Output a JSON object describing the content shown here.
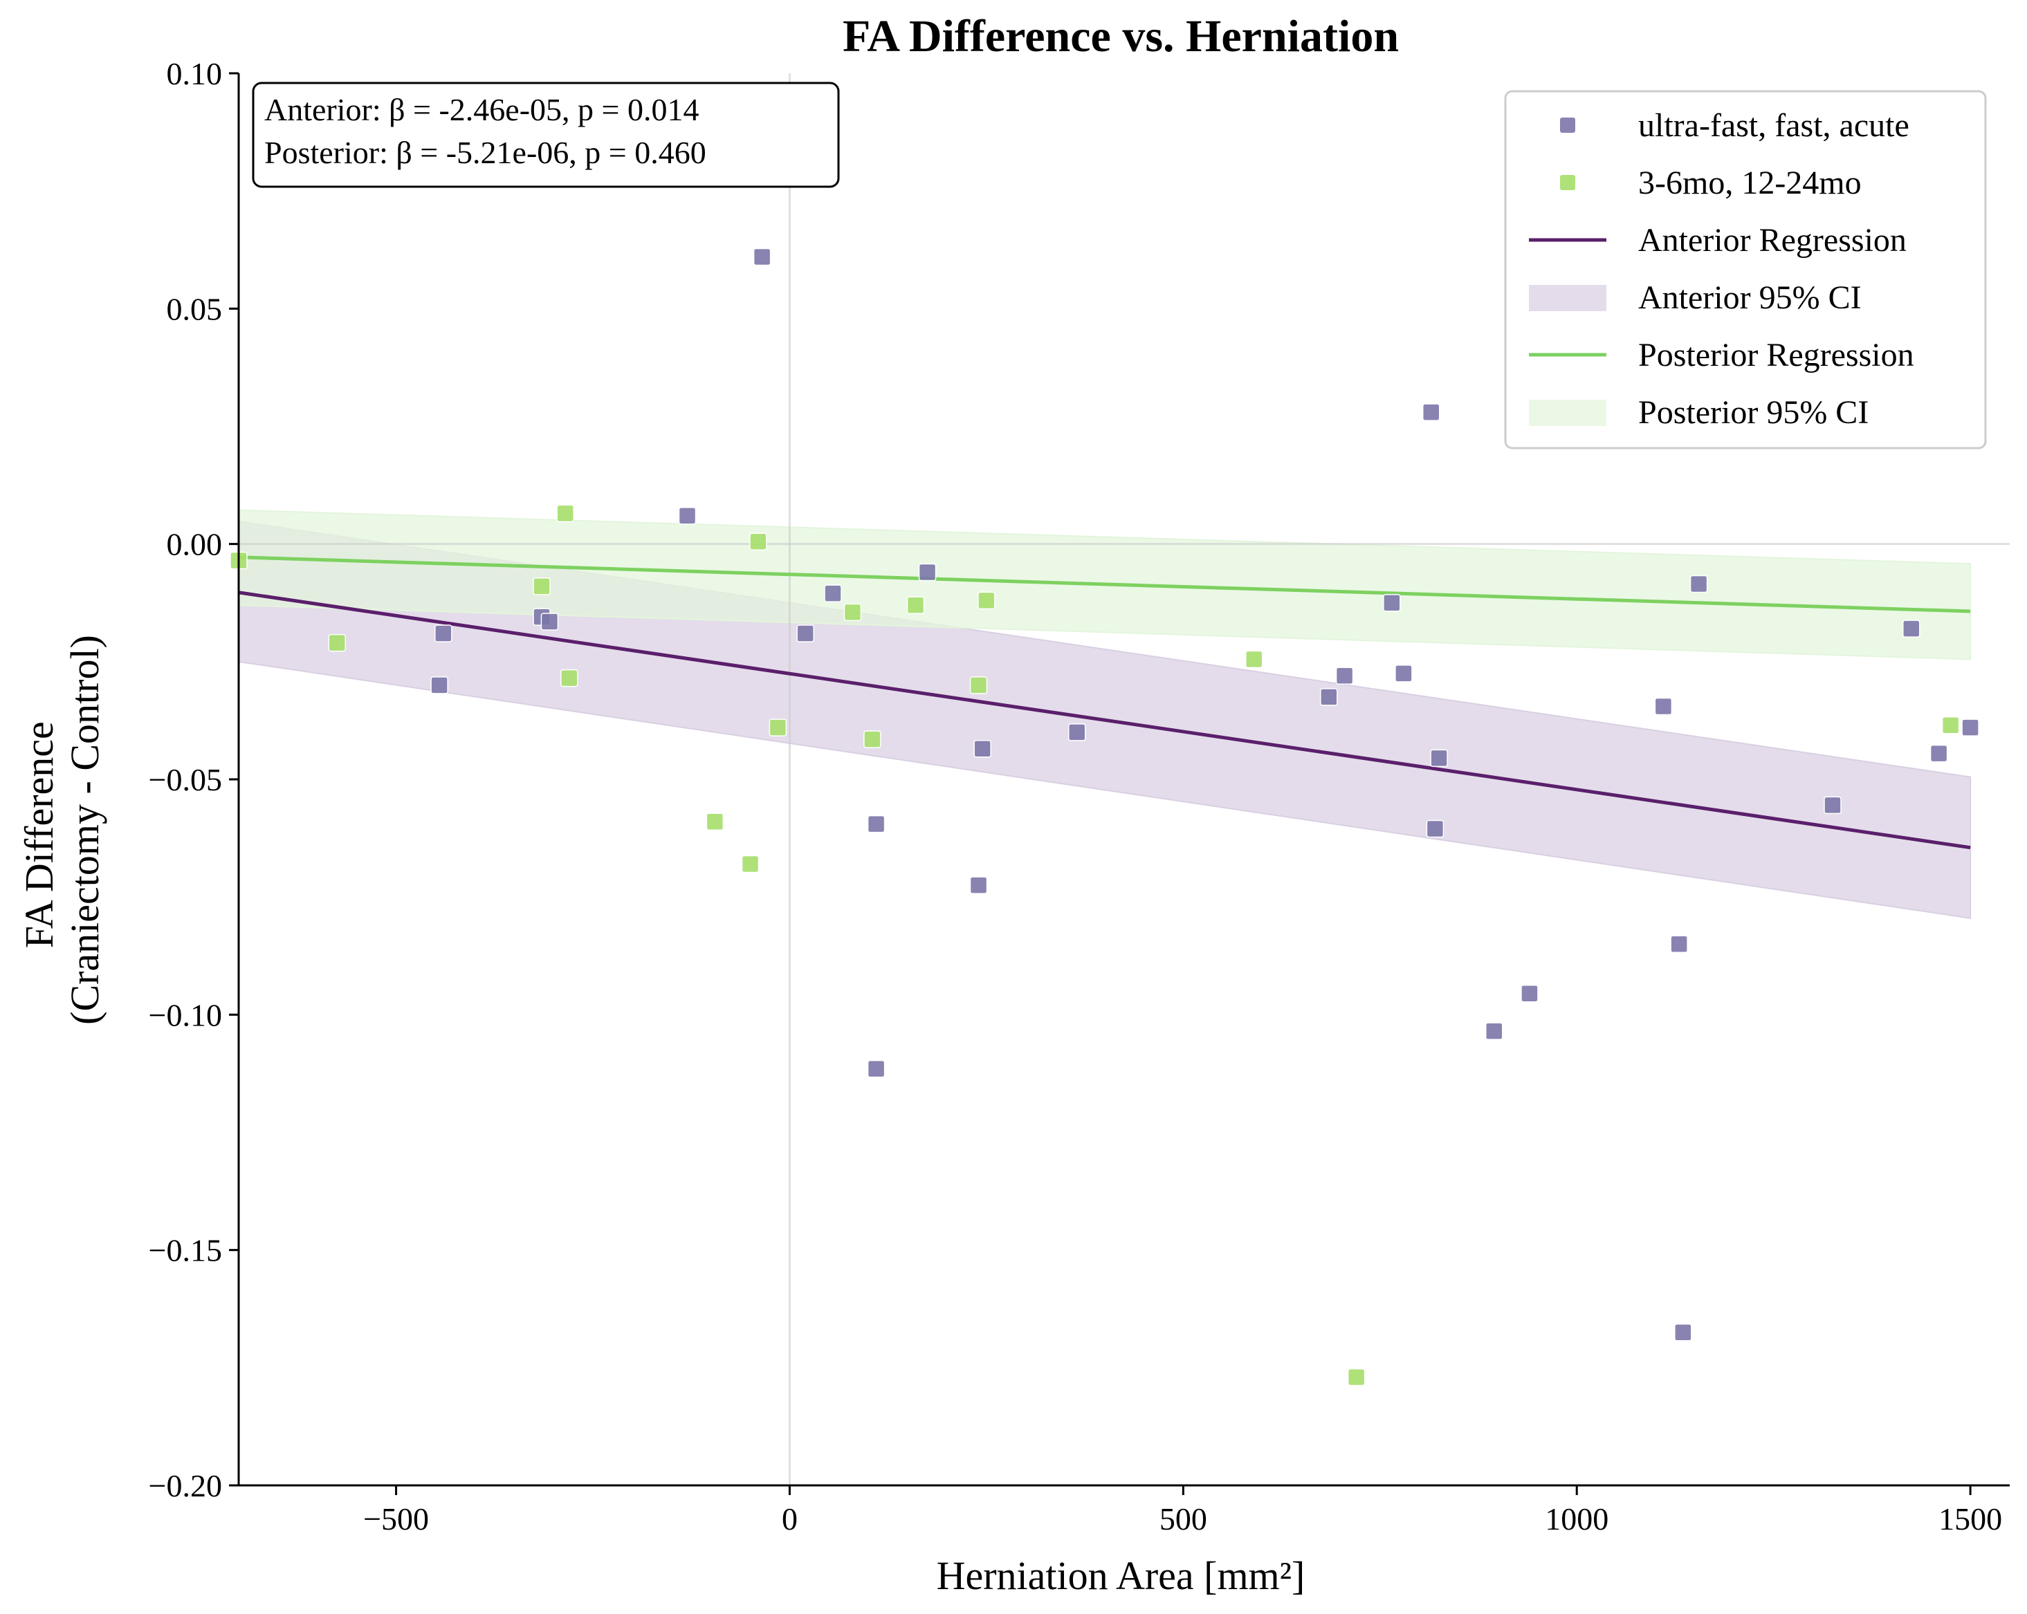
{
  "chart_data": {
    "type": "scatter",
    "title": "FA Difference vs. Herniation",
    "xlabel": "Herniation Area [mm²]",
    "ylabel": [
      "FA Difference",
      "(Craniectomy - Control)"
    ],
    "xlim": [
      -700,
      1550
    ],
    "ylim": [
      -0.2,
      0.1
    ],
    "x_ticks": [
      -500,
      0,
      500,
      1000,
      1500
    ],
    "x_tick_labels": [
      "−500",
      "0",
      "500",
      "1000",
      "1500"
    ],
    "y_ticks": [
      0.1,
      0.05,
      0.0,
      -0.05,
      -0.1,
      -0.15,
      -0.2
    ],
    "y_tick_labels": [
      "0.10",
      "0.05",
      "0.00",
      "−0.05",
      "−0.10",
      "−0.15",
      "−0.20"
    ],
    "reference_lines": {
      "x": 0,
      "y": 0
    },
    "grid": false,
    "legend_position": "top-right",
    "colors": {
      "acute_points": "#7b75a8",
      "chronic_points": "#a6de6a",
      "anterior_line": "#5a1f6b",
      "anterior_ci": "#d9cfe2",
      "posterior_line": "#7dd160",
      "posterior_ci": "#e3f5dc"
    },
    "stats_text": [
      "Anterior: β = -2.46e-05, p = 0.014",
      "Posterior: β = -5.21e-06, p = 0.460"
    ],
    "series": [
      {
        "name": "ultra-fast, fast, acute",
        "kind": "scatter",
        "color_key": "acute_points",
        "points": [
          [
            -35,
            0.061
          ],
          [
            -130,
            0.006
          ],
          [
            815,
            0.028
          ],
          [
            1155,
            -0.0085
          ],
          [
            1425,
            -0.018
          ],
          [
            765,
            -0.0125
          ],
          [
            175,
            -0.006
          ],
          [
            55,
            -0.0105
          ],
          [
            20,
            -0.019
          ],
          [
            -440,
            -0.019
          ],
          [
            -315,
            -0.0155
          ],
          [
            -305,
            -0.0165
          ],
          [
            -445,
            -0.03
          ],
          [
            705,
            -0.028
          ],
          [
            780,
            -0.0275
          ],
          [
            685,
            -0.0325
          ],
          [
            1110,
            -0.0345
          ],
          [
            365,
            -0.04
          ],
          [
            245,
            -0.0435
          ],
          [
            825,
            -0.0455
          ],
          [
            1460,
            -0.0445
          ],
          [
            1500,
            -0.039
          ],
          [
            1325,
            -0.0555
          ],
          [
            110,
            -0.0595
          ],
          [
            820,
            -0.0605
          ],
          [
            240,
            -0.0725
          ],
          [
            1130,
            -0.085
          ],
          [
            940,
            -0.0955
          ],
          [
            895,
            -0.1035
          ],
          [
            110,
            -0.1115
          ],
          [
            1135,
            -0.1675
          ]
        ]
      },
      {
        "name": "3-6mo, 12-24mo",
        "kind": "scatter",
        "color_key": "chronic_points",
        "points": [
          [
            -285,
            0.0065
          ],
          [
            -40,
            0.0005
          ],
          [
            -700,
            -0.0035
          ],
          [
            -315,
            -0.009
          ],
          [
            250,
            -0.012
          ],
          [
            160,
            -0.013
          ],
          [
            80,
            -0.0145
          ],
          [
            -575,
            -0.021
          ],
          [
            590,
            -0.0245
          ],
          [
            -280,
            -0.0285
          ],
          [
            240,
            -0.03
          ],
          [
            -15,
            -0.039
          ],
          [
            105,
            -0.0415
          ],
          [
            1475,
            -0.0385
          ],
          [
            -95,
            -0.059
          ],
          [
            -50,
            -0.068
          ],
          [
            720,
            -0.177
          ]
        ]
      },
      {
        "name": "Anterior Regression",
        "kind": "line",
        "color_key": "anterior_line",
        "x": [
          -700,
          1500
        ],
        "y": [
          -0.0103,
          -0.0645
        ]
      },
      {
        "name": "Anterior 95% CI",
        "kind": "band",
        "color_key": "anterior_ci",
        "x": [
          -700,
          1500
        ],
        "lower": [
          -0.025,
          -0.0795
        ],
        "upper": [
          0.0048,
          -0.0495
        ]
      },
      {
        "name": "Posterior Regression",
        "kind": "line",
        "color_key": "posterior_line",
        "x": [
          -700,
          1500
        ],
        "y": [
          -0.0028,
          -0.0143
        ]
      },
      {
        "name": "Posterior 95% CI",
        "kind": "band",
        "color_key": "posterior_ci",
        "x": [
          -700,
          1500
        ],
        "lower": [
          -0.013,
          -0.0245
        ],
        "upper": [
          0.0072,
          -0.0042
        ]
      }
    ]
  }
}
